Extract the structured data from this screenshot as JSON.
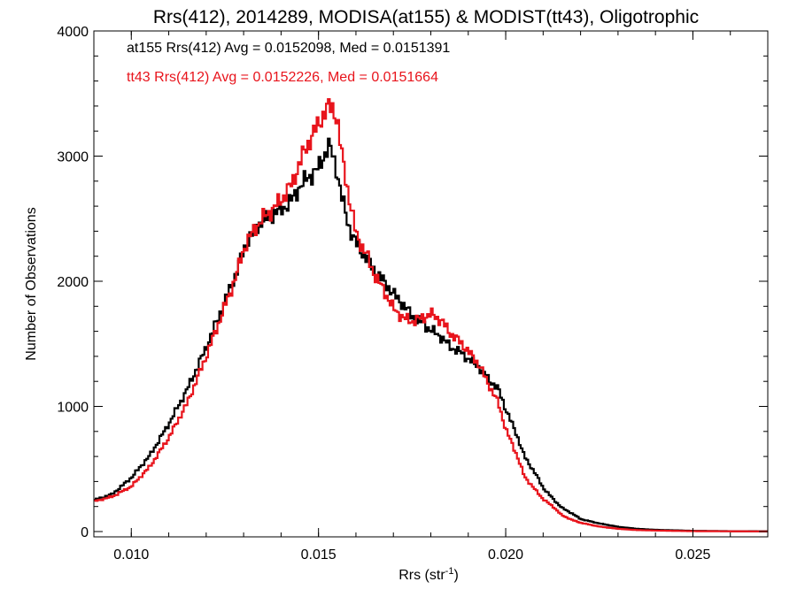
{
  "chart_data": {
    "type": "line",
    "title": "Rrs(412), 2014289, MODISA(at155) & MODIST(tt43), Oligotrophic",
    "xlabel": "Rrs (str",
    "xlabel_sup": "-1",
    "xlabel_close": ")",
    "ylabel": "Number of Observations",
    "xlim": [
      0.009,
      0.027
    ],
    "ylim": [
      0,
      4000
    ],
    "xticks": [
      0.01,
      0.015,
      0.02,
      0.025
    ],
    "xtick_labels": [
      "0.010",
      "0.015",
      "0.020",
      "0.025"
    ],
    "yticks": [
      0,
      1000,
      2000,
      3000,
      4000
    ],
    "ytick_labels": [
      "0",
      "1000",
      "2000",
      "3000",
      "4000"
    ],
    "legend_position": "top-left",
    "series": [
      {
        "name": "at155",
        "color": "#000000",
        "annotation": "at155 Rrs(412) Avg = 0.0152098, Med = 0.0151391",
        "x": [
          0.009,
          0.0095,
          0.01,
          0.0105,
          0.011,
          0.0115,
          0.012,
          0.0125,
          0.0128,
          0.013,
          0.0133,
          0.0135,
          0.0138,
          0.014,
          0.0143,
          0.0145,
          0.0148,
          0.015,
          0.0151,
          0.0152,
          0.0153,
          0.0154,
          0.0155,
          0.0156,
          0.0158,
          0.016,
          0.0163,
          0.0165,
          0.0168,
          0.017,
          0.0173,
          0.0175,
          0.0178,
          0.018,
          0.0183,
          0.0185,
          0.0188,
          0.019,
          0.0193,
          0.0195,
          0.0198,
          0.02,
          0.0203,
          0.0205,
          0.0208,
          0.021,
          0.0213,
          0.0215,
          0.0218,
          0.022,
          0.0225,
          0.023,
          0.0235,
          0.024,
          0.025,
          0.026,
          0.027
        ],
        "values": [
          250,
          300,
          430,
          610,
          860,
          1140,
          1470,
          1840,
          2060,
          2250,
          2420,
          2480,
          2540,
          2570,
          2650,
          2760,
          2850,
          2900,
          2970,
          3050,
          3080,
          2980,
          2880,
          2700,
          2450,
          2300,
          2180,
          2080,
          1980,
          1900,
          1800,
          1720,
          1660,
          1610,
          1550,
          1480,
          1430,
          1380,
          1310,
          1230,
          1140,
          980,
          770,
          600,
          460,
          350,
          250,
          190,
          140,
          100,
          65,
          38,
          22,
          14,
          6,
          3,
          2
        ]
      },
      {
        "name": "tt43",
        "color": "#e8141c",
        "annotation": "tt43 Rrs(412) Avg = 0.0152226, Med = 0.0151664",
        "x": [
          0.009,
          0.0095,
          0.01,
          0.0105,
          0.011,
          0.0115,
          0.012,
          0.0125,
          0.0128,
          0.013,
          0.0133,
          0.0135,
          0.0138,
          0.014,
          0.0143,
          0.0145,
          0.0148,
          0.015,
          0.0151,
          0.0152,
          0.0153,
          0.0154,
          0.0155,
          0.0156,
          0.0158,
          0.016,
          0.0163,
          0.0165,
          0.0168,
          0.017,
          0.0173,
          0.0175,
          0.0178,
          0.018,
          0.0183,
          0.0185,
          0.0188,
          0.019,
          0.0193,
          0.0195,
          0.0198,
          0.02,
          0.0203,
          0.0205,
          0.0208,
          0.021,
          0.0213,
          0.0215,
          0.0218,
          0.022,
          0.0225,
          0.023,
          0.0235,
          0.024,
          0.025,
          0.026,
          0.027
        ],
        "values": [
          240,
          280,
          360,
          520,
          750,
          1030,
          1400,
          1800,
          2040,
          2260,
          2420,
          2500,
          2580,
          2650,
          2780,
          2950,
          3150,
          3250,
          3320,
          3370,
          3390,
          3380,
          3300,
          3050,
          2700,
          2380,
          2200,
          2050,
          1900,
          1780,
          1700,
          1680,
          1710,
          1740,
          1680,
          1590,
          1510,
          1440,
          1330,
          1200,
          1030,
          820,
          610,
          440,
          330,
          260,
          190,
          130,
          90,
          70,
          40,
          22,
          12,
          8,
          3,
          2,
          1
        ]
      }
    ]
  }
}
